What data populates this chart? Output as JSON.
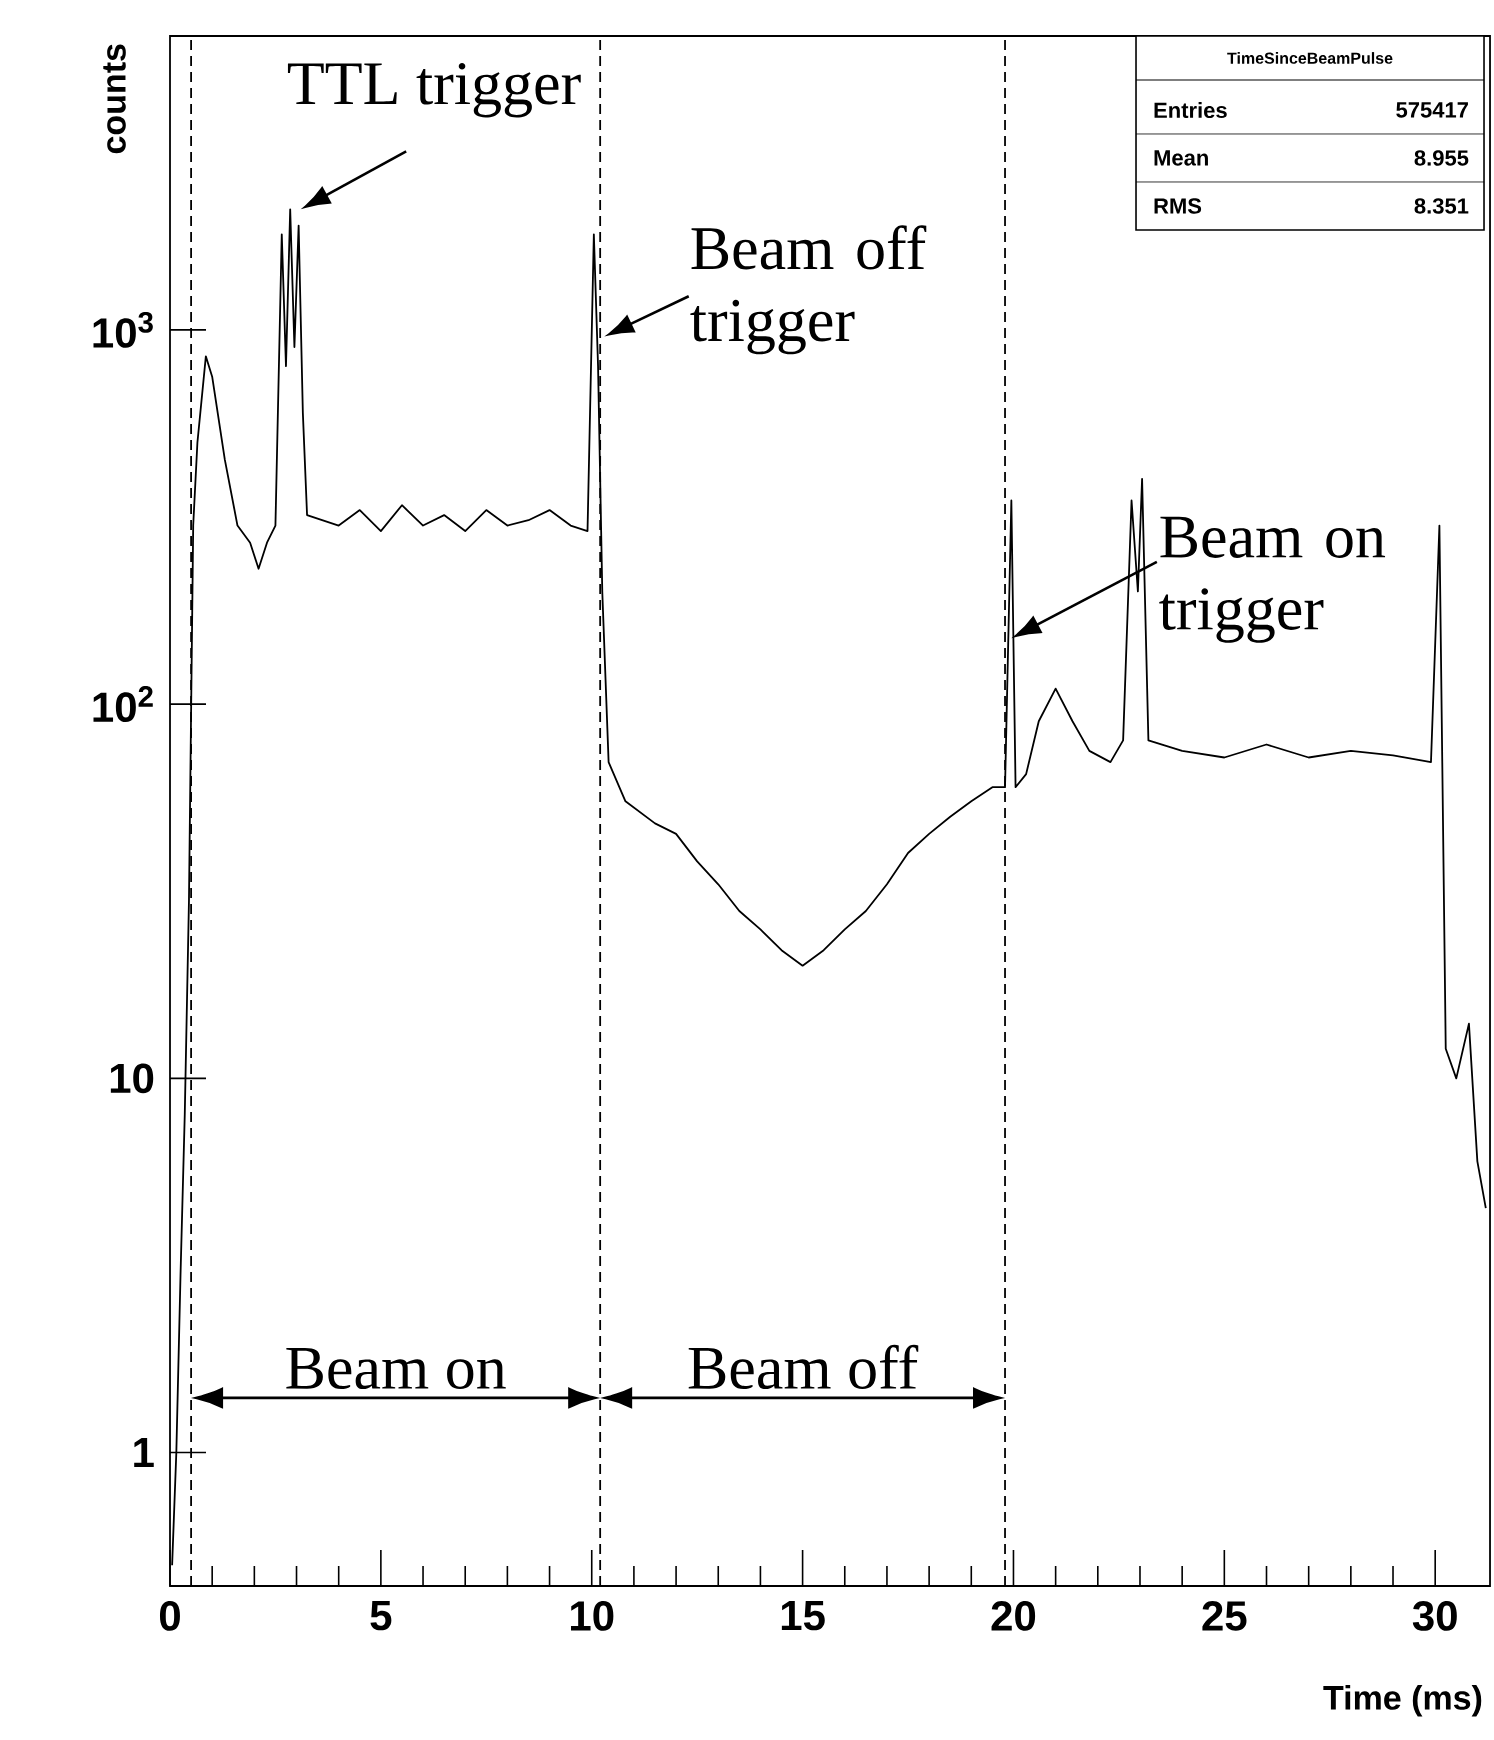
{
  "chart_data": {
    "type": "line",
    "xlabel": "Time (ms)",
    "ylabel": "counts",
    "log": "y",
    "xlim": [
      0,
      31.3
    ],
    "xticks": [
      0,
      5,
      10,
      15,
      20,
      25,
      30
    ],
    "ylim": [
      0.44,
      6100
    ],
    "yticks": [
      1,
      10,
      {
        "value": 100,
        "label": "10$^{2}$"
      },
      {
        "value": 1000,
        "label": "10$^{3}$"
      }
    ],
    "series": [
      {
        "color": "#000000",
        "x": [
          0.05,
          0.15,
          0.25,
          0.35,
          0.45,
          0.55,
          0.65,
          0.85,
          1.0,
          1.3,
          1.6,
          1.9,
          2.1,
          2.3,
          2.5,
          2.65,
          2.75,
          2.85,
          2.95,
          3.05,
          3.15,
          3.25,
          4,
          4.5,
          5,
          5.5,
          6,
          6.5,
          7,
          7.5,
          8,
          8.5,
          9,
          9.5,
          9.9,
          10.05,
          10.15,
          10.25,
          10.4,
          10.8,
          11.5,
          12,
          12.5,
          13,
          13.5,
          14,
          14.5,
          15,
          15.5,
          16,
          16.5,
          17,
          17.5,
          18,
          18.5,
          19,
          19.5,
          19.8,
          19.95,
          20.05,
          20.3,
          20.6,
          21.0,
          21.4,
          21.8,
          22.3,
          22.6,
          22.8,
          22.95,
          23.05,
          23.2,
          24,
          25,
          26,
          27,
          28,
          29,
          29.9,
          30.1,
          30.25,
          30.5,
          30.8,
          31.0,
          31.2
        ],
        "values": [
          0.5,
          1.0,
          3,
          8,
          30,
          300,
          500,
          850,
          750,
          450,
          300,
          270,
          230,
          270,
          300,
          1800,
          800,
          2100,
          900,
          1900,
          600,
          320,
          300,
          330,
          290,
          340,
          300,
          320,
          290,
          330,
          300,
          310,
          330,
          300,
          290,
          1800,
          800,
          200,
          70,
          55,
          48,
          45,
          38,
          33,
          28,
          25,
          22,
          20,
          22,
          25,
          28,
          33,
          40,
          45,
          50,
          55,
          60,
          60,
          350,
          60,
          65,
          90,
          110,
          90,
          75,
          70,
          80,
          350,
          200,
          400,
          80,
          75,
          72,
          78,
          72,
          75,
          73,
          70,
          300,
          12,
          10,
          14,
          6,
          4.5
        ]
      }
    ],
    "ref_lines": [
      {
        "axis": "x",
        "value": 0.5,
        "line_style": "dashed"
      },
      {
        "axis": "x",
        "value": 10.2,
        "line_style": "dashed"
      },
      {
        "axis": "x",
        "value": 19.8,
        "line_style": "dashed"
      }
    ],
    "annotations": [
      {
        "text": "TTL trigger",
        "x": 3.1,
        "y": 2100
      },
      {
        "text": "Beam off trigger",
        "x": 10.3,
        "y": 960
      },
      {
        "text": "Beam on trigger",
        "x": 19.95,
        "y": 150
      },
      "Beam on",
      "Beam off",
      "TimeSinceBeamPulse",
      "Entries",
      "575417",
      "Mean",
      "8.955",
      "RMS",
      "8.351"
    ]
  }
}
